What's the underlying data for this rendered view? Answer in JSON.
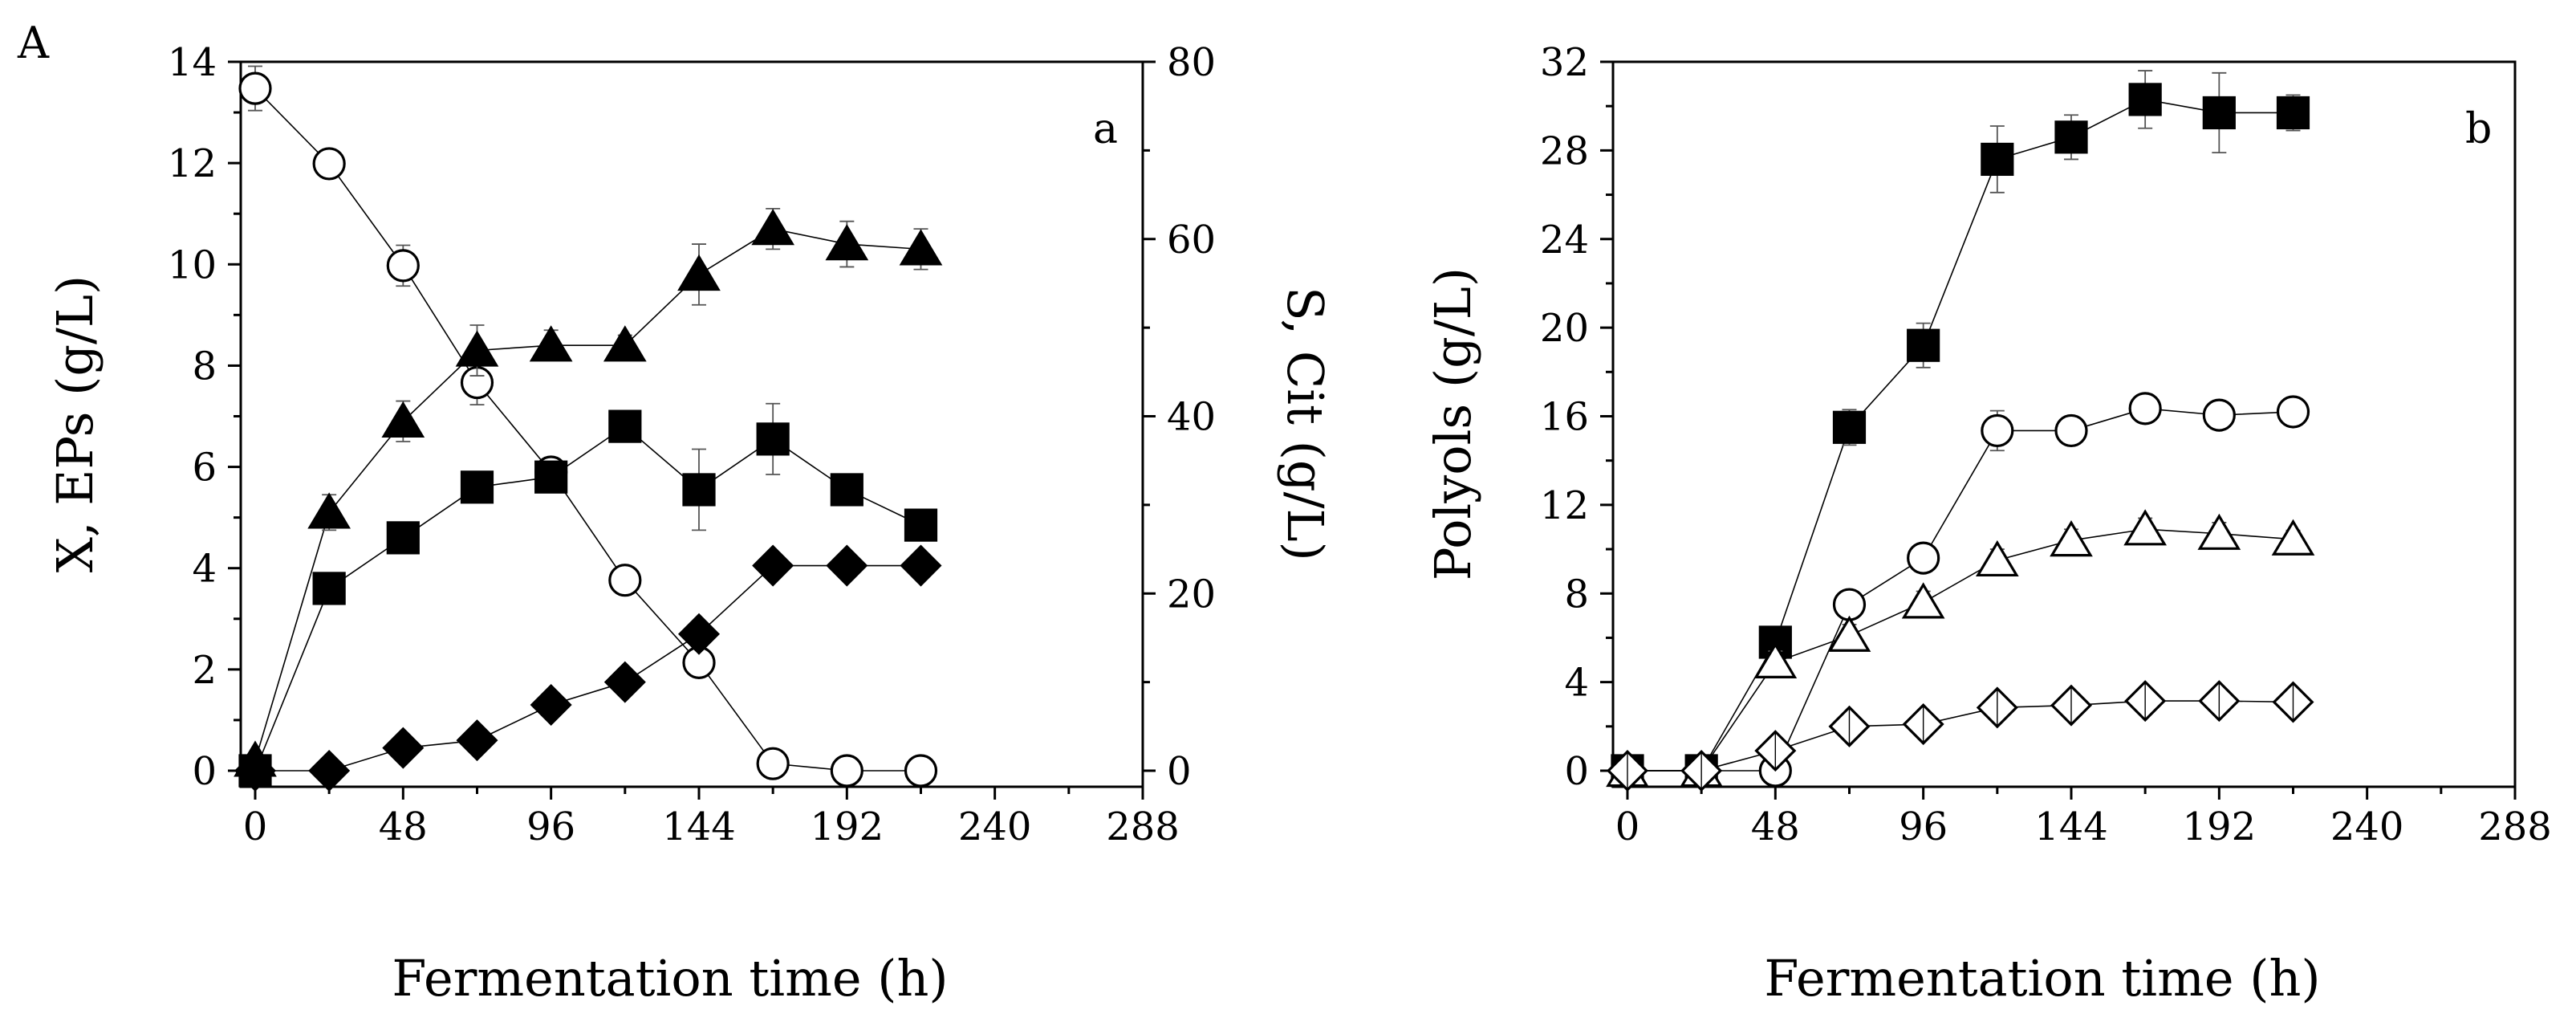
{
  "figure_label": "A",
  "chart_data": [
    {
      "type": "line",
      "panel": "a",
      "xlabel": "Fermentation time (h)",
      "ylabel": "X, EPs (g/L)",
      "ylabel_right": "S, Cit (g/L)",
      "xlim": [
        0,
        288
      ],
      "ylim": [
        0,
        14
      ],
      "ylim_right": [
        0,
        80
      ],
      "x_ticks": [
        0,
        48,
        96,
        144,
        192,
        240,
        288
      ],
      "y_ticks": [
        0,
        2,
        4,
        6,
        8,
        10,
        12,
        14
      ],
      "y_ticks_right": [
        0,
        20,
        40,
        60,
        80
      ],
      "series": [
        {
          "name": "open-circle",
          "marker": "circle-open",
          "axis": "right",
          "x": [
            0,
            24,
            48,
            72,
            96,
            120,
            144,
            168,
            192,
            216
          ],
          "y": [
            77,
            68.5,
            57,
            43.8,
            33.7,
            21.5,
            12.2,
            0.8,
            0,
            0
          ],
          "err": [
            2.5,
            0,
            2.3,
            2.5,
            0,
            0,
            1,
            0,
            0,
            0
          ]
        },
        {
          "name": "filled-triangle",
          "marker": "triangle-filled",
          "axis": "left",
          "x": [
            0,
            24,
            48,
            72,
            96,
            120,
            144,
            168,
            192,
            216
          ],
          "y": [
            0.2,
            5.1,
            6.9,
            8.3,
            8.4,
            8.4,
            9.8,
            10.7,
            10.4,
            10.3
          ],
          "err": [
            0,
            0.35,
            0.4,
            0.5,
            0.3,
            0.2,
            0.6,
            0.4,
            0.45,
            0.4
          ]
        },
        {
          "name": "filled-square",
          "marker": "square-filled",
          "axis": "left",
          "x": [
            0,
            24,
            48,
            72,
            96,
            120,
            144,
            168,
            192,
            216
          ],
          "y": [
            0,
            3.6,
            4.6,
            5.6,
            5.8,
            6.8,
            5.55,
            6.55,
            5.55,
            4.85
          ],
          "err": [
            0,
            0,
            0,
            0.3,
            0.3,
            0.3,
            0.8,
            0.7,
            0.3,
            0.2
          ]
        },
        {
          "name": "filled-diamond",
          "marker": "diamond-filled",
          "axis": "left",
          "x": [
            0,
            24,
            48,
            72,
            96,
            120,
            144,
            168,
            192,
            216
          ],
          "y": [
            0,
            0,
            0.45,
            0.6,
            1.3,
            1.75,
            2.7,
            4.05,
            4.05,
            4.05
          ],
          "err": [
            0,
            0,
            0,
            0,
            0,
            0,
            0,
            0,
            0,
            0
          ]
        }
      ]
    },
    {
      "type": "line",
      "panel": "b",
      "xlabel": "Fermentation time (h)",
      "ylabel": "Polyols (g/L)",
      "xlim": [
        0,
        288
      ],
      "ylim": [
        0,
        32
      ],
      "x_ticks": [
        0,
        48,
        96,
        144,
        192,
        240,
        288
      ],
      "y_ticks": [
        0,
        4,
        8,
        12,
        16,
        20,
        24,
        28,
        32
      ],
      "series": [
        {
          "name": "filled-square",
          "marker": "square-filled",
          "x": [
            0,
            24,
            48,
            72,
            96,
            120,
            144,
            168,
            192,
            216
          ],
          "y": [
            0,
            0,
            5.8,
            15.5,
            19.2,
            27.6,
            28.6,
            30.3,
            29.7,
            29.7
          ],
          "err": [
            0,
            0,
            0,
            0.8,
            1,
            1.5,
            1,
            1.3,
            1.8,
            0.8
          ]
        },
        {
          "name": "open-circle",
          "marker": "circle-open",
          "x": [
            0,
            24,
            48,
            72,
            96,
            120,
            144,
            168,
            192,
            216
          ],
          "y": [
            0,
            0,
            0,
            7.5,
            9.6,
            15.35,
            15.35,
            16.35,
            16.05,
            16.2
          ],
          "err": [
            0,
            0,
            0,
            0.4,
            0.4,
            0.9,
            0.6,
            0.4,
            0.6,
            0.3
          ]
        },
        {
          "name": "open-triangle",
          "marker": "triangle-open",
          "x": [
            0,
            24,
            48,
            72,
            96,
            120,
            144,
            168,
            192,
            216
          ],
          "y": [
            0,
            0,
            4.9,
            6.1,
            7.6,
            9.5,
            10.4,
            10.9,
            10.7,
            10.45
          ],
          "err": [
            0,
            0,
            0.5,
            0.5,
            0.5,
            0.5,
            0.5,
            0.5,
            0.5,
            0.4
          ]
        },
        {
          "name": "open-diamond",
          "marker": "diamond-open",
          "x": [
            0,
            24,
            48,
            72,
            96,
            120,
            144,
            168,
            192,
            216
          ],
          "y": [
            0,
            0,
            0.9,
            2.0,
            2.1,
            2.85,
            2.95,
            3.15,
            3.15,
            3.1
          ],
          "err": [
            0,
            0,
            0,
            0.3,
            0.3,
            0.3,
            0.3,
            0.3,
            0.3,
            0.3
          ]
        }
      ]
    }
  ]
}
